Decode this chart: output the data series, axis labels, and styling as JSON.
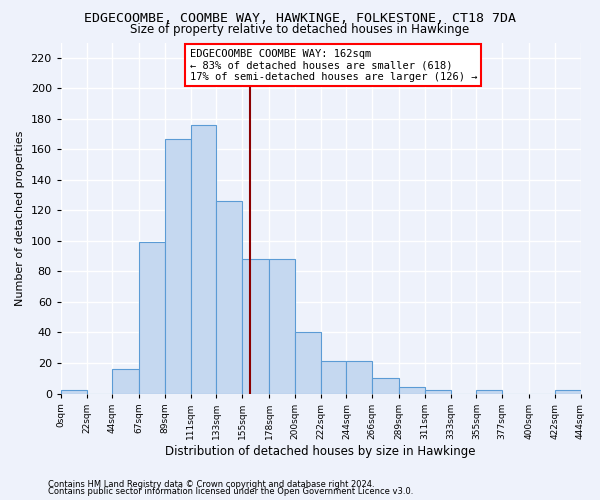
{
  "title": "EDGECOOMBE, COOMBE WAY, HAWKINGE, FOLKESTONE, CT18 7DA",
  "subtitle": "Size of property relative to detached houses in Hawkinge",
  "xlabel": "Distribution of detached houses by size in Hawkinge",
  "ylabel": "Number of detached properties",
  "bin_edges": [
    0,
    22,
    44,
    67,
    89,
    111,
    133,
    155,
    178,
    200,
    222,
    244,
    266,
    289,
    311,
    333,
    355,
    377,
    400,
    422,
    444
  ],
  "bar_heights": [
    2,
    0,
    16,
    99,
    167,
    176,
    126,
    88,
    88,
    40,
    21,
    21,
    10,
    4,
    2,
    0,
    2,
    0,
    0,
    2
  ],
  "bar_color": "#c5d8f0",
  "bar_edgecolor": "#5b9bd5",
  "vline_x": 162,
  "vline_color": "#8b0000",
  "annotation_line1": "EDGECOOMBE COOMBE WAY: 162sqm",
  "annotation_line2": "← 83% of detached houses are smaller (618)",
  "annotation_line3": "17% of semi-detached houses are larger (126) →",
  "annotation_box_color": "white",
  "annotation_box_edgecolor": "red",
  "ylim": [
    0,
    230
  ],
  "yticks": [
    0,
    20,
    40,
    60,
    80,
    100,
    120,
    140,
    160,
    180,
    200,
    220
  ],
  "footnote1": "Contains HM Land Registry data © Crown copyright and database right 2024.",
  "footnote2": "Contains public sector information licensed under the Open Government Licence v3.0.",
  "bg_color": "#eef2fb",
  "grid_color": "white",
  "tick_labels": [
    "0sqm",
    "22sqm",
    "44sqm",
    "67sqm",
    "89sqm",
    "111sqm",
    "133sqm",
    "155sqm",
    "178sqm",
    "200sqm",
    "222sqm",
    "244sqm",
    "266sqm",
    "289sqm",
    "311sqm",
    "333sqm",
    "355sqm",
    "377sqm",
    "400sqm",
    "422sqm",
    "444sqm"
  ]
}
